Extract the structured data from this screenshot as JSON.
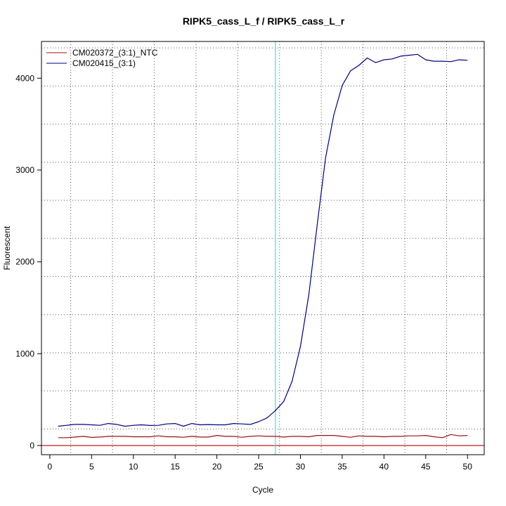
{
  "chart_data": {
    "type": "line",
    "title": "RIPK5_cass_L_f / RIPK5_cass_L_r",
    "xlabel": "Cycle",
    "ylabel": "Fluorescent",
    "xlim": [
      -1,
      52
    ],
    "ylim": [
      -100,
      4400
    ],
    "x_ticks": [
      0,
      5,
      10,
      15,
      20,
      25,
      30,
      35,
      40,
      45,
      50
    ],
    "y_ticks": [
      0,
      1000,
      2000,
      3000,
      4000
    ],
    "grid": true,
    "legend_position": "top-left",
    "threshold_cycle": 27,
    "threshold_color": "#40e0e8",
    "baseline_value": 0,
    "baseline_color": "#c00000",
    "x": [
      1,
      2,
      3,
      4,
      5,
      6,
      7,
      8,
      9,
      10,
      11,
      12,
      13,
      14,
      15,
      16,
      17,
      18,
      19,
      20,
      21,
      22,
      23,
      24,
      25,
      26,
      27,
      28,
      29,
      30,
      31,
      32,
      33,
      34,
      35,
      36,
      37,
      38,
      39,
      40,
      41,
      42,
      43,
      44,
      45,
      46,
      47,
      48,
      49,
      50
    ],
    "series": [
      {
        "name": "CM020372_(3:1)_NTC",
        "color": "#a01010",
        "values": [
          85,
          85,
          92,
          100,
          88,
          92,
          100,
          100,
          100,
          95,
          95,
          95,
          105,
          95,
          95,
          90,
          100,
          92,
          92,
          110,
          100,
          100,
          90,
          100,
          105,
          100,
          100,
          92,
          100,
          100,
          95,
          110,
          110,
          110,
          100,
          90,
          105,
          100,
          100,
          95,
          100,
          100,
          105,
          105,
          110,
          95,
          85,
          120,
          105,
          110
        ]
      },
      {
        "name": "CM020415_(3:1)",
        "color": "#000080",
        "values": [
          210,
          220,
          230,
          230,
          225,
          220,
          240,
          230,
          210,
          220,
          225,
          218,
          220,
          235,
          240,
          210,
          240,
          225,
          228,
          225,
          225,
          240,
          235,
          230,
          260,
          300,
          380,
          480,
          700,
          1080,
          1640,
          2400,
          3130,
          3600,
          3920,
          4080,
          4140,
          4220,
          4170,
          4200,
          4210,
          4240,
          4250,
          4260,
          4200,
          4185,
          4185,
          4180,
          4200,
          4195
        ]
      }
    ]
  }
}
